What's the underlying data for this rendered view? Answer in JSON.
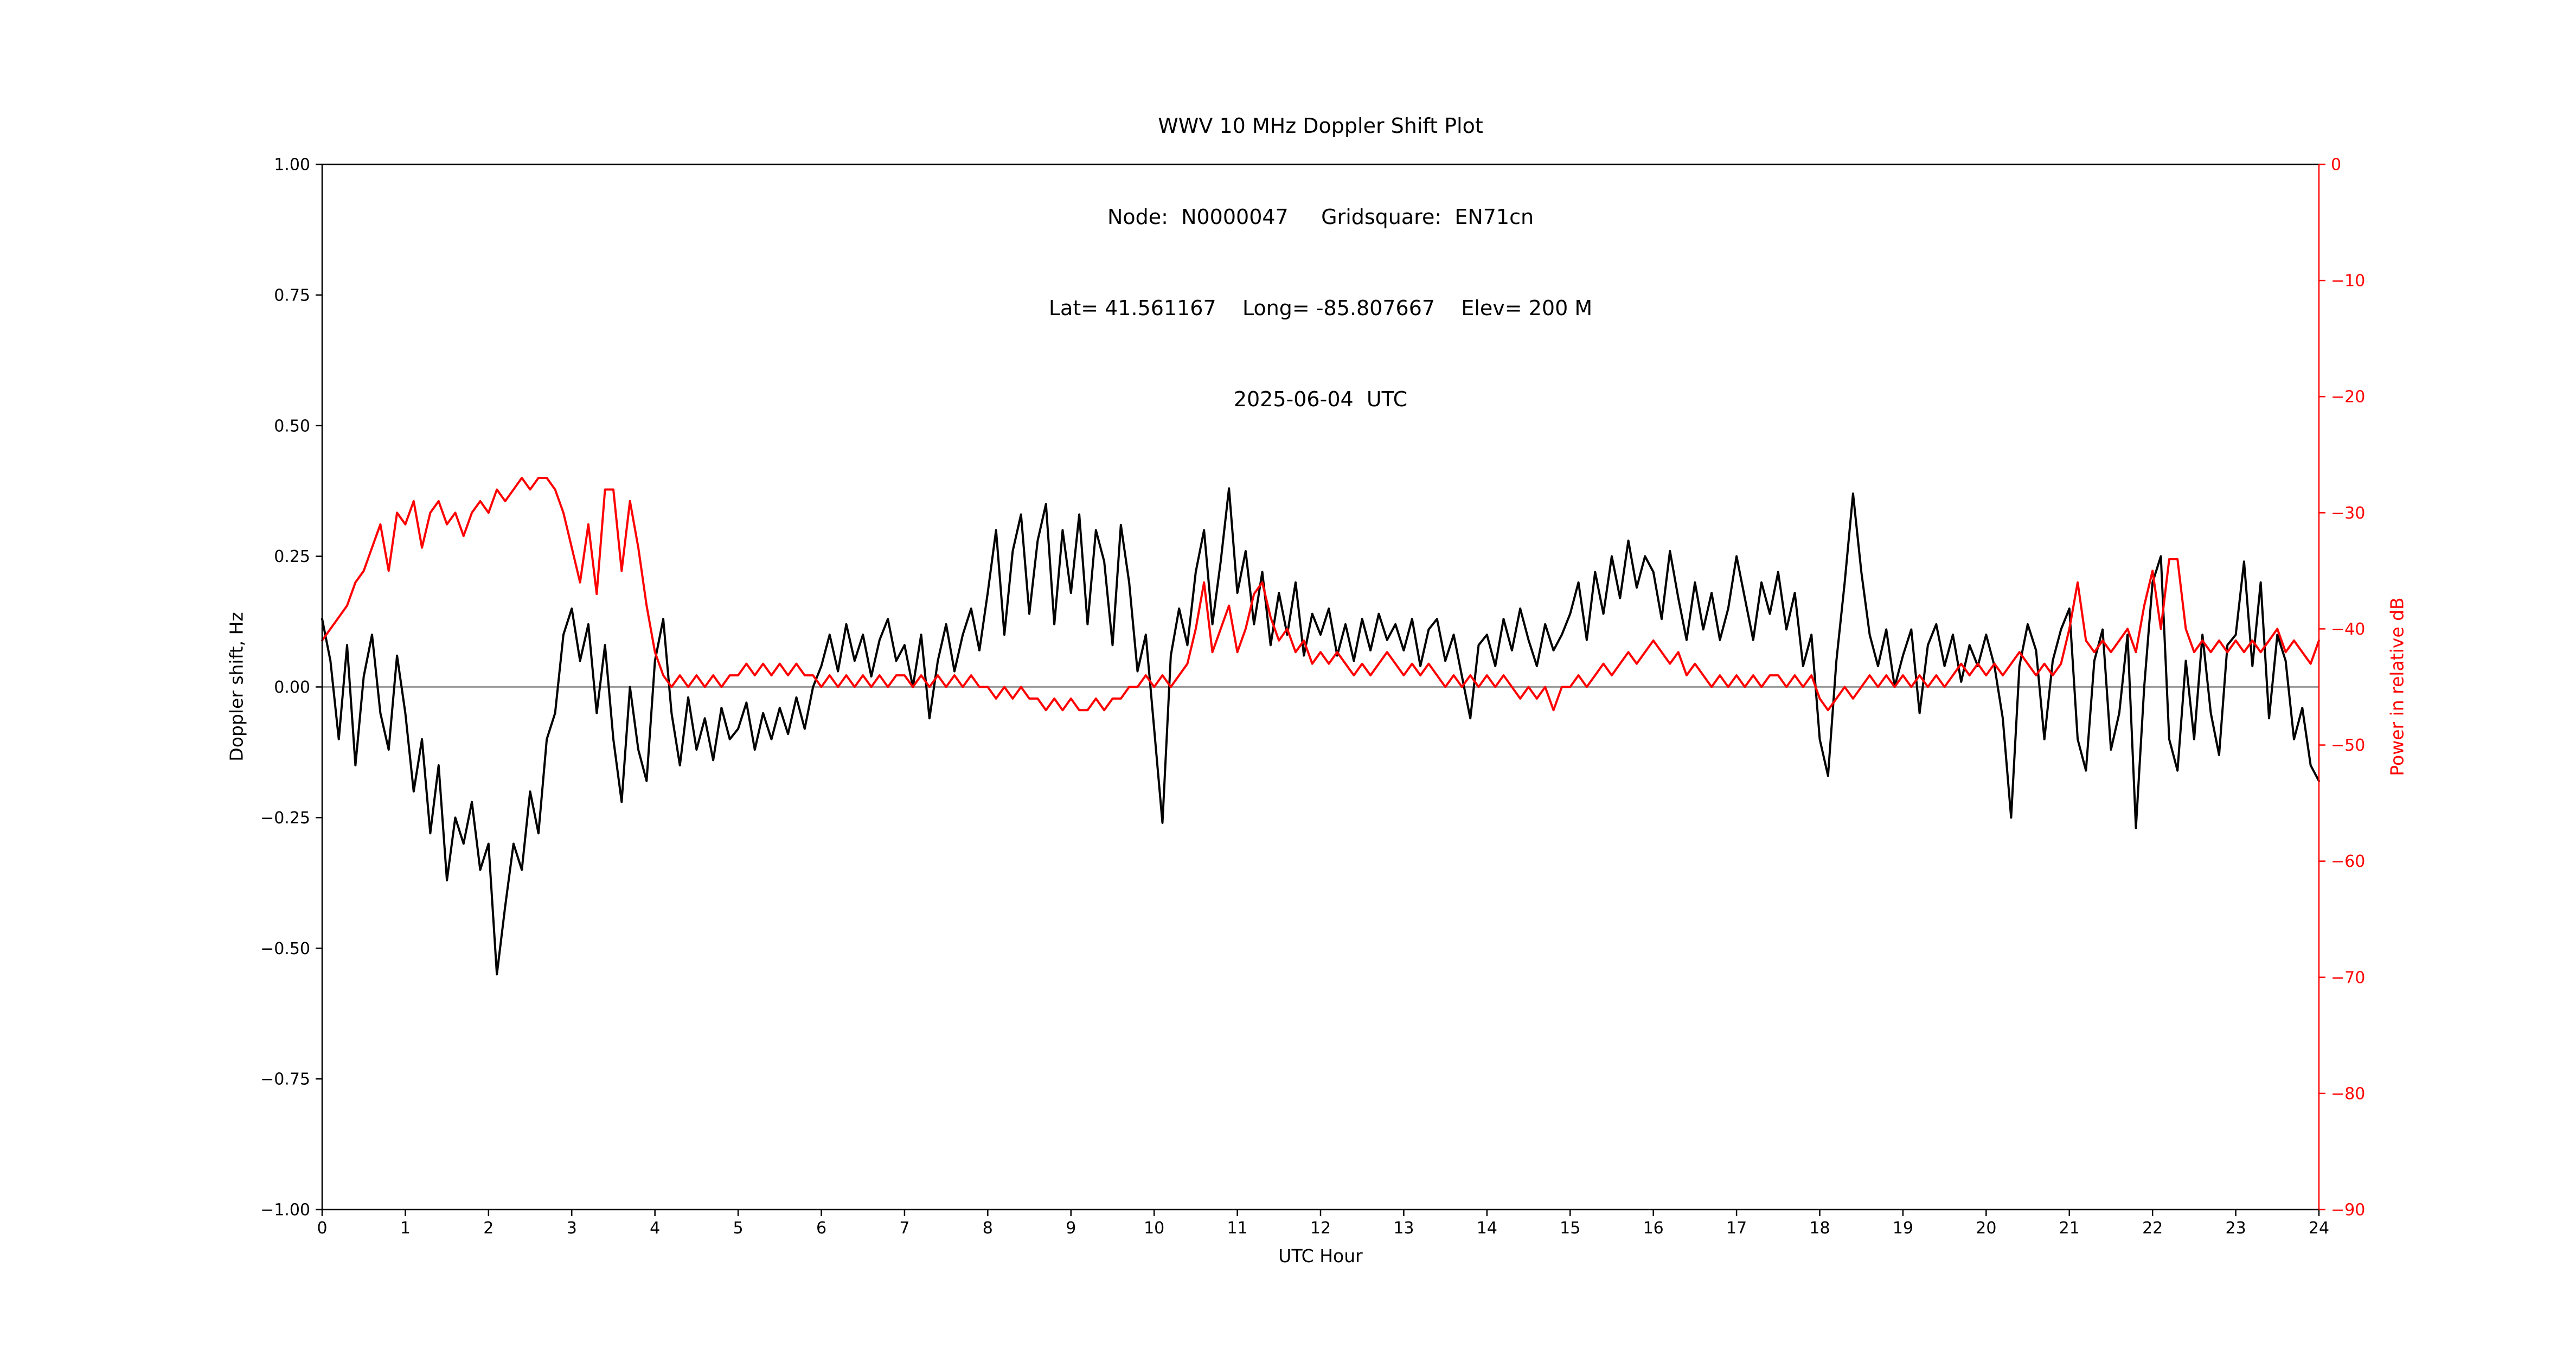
{
  "title": {
    "line1": "WWV 10 MHz Doppler Shift Plot",
    "line2": "Node:  N0000047     Gridsquare:  EN71cn",
    "line3": "Lat= 41.561167    Long= -85.807667    Elev= 200 M",
    "line4": "2025-06-04  UTC"
  },
  "axes": {
    "xlabel": "UTC Hour",
    "ylabel_left": "Doppler shift, Hz",
    "ylabel_right": "Power in relative dB"
  },
  "colors": {
    "doppler_line": "#000000",
    "power_line": "#ff0000",
    "right_axis": "#ff0000",
    "zero_line": "#808080",
    "spine": "#000000",
    "background": "#ffffff"
  },
  "chart_data": {
    "type": "line",
    "title": "WWV 10 MHz Doppler Shift Plot",
    "xlabel": "UTC Hour",
    "ylabel_left": "Doppler shift, Hz",
    "ylabel_right": "Power in relative dB",
    "x_range": [
      0,
      24
    ],
    "y_left_range": [
      -1.0,
      1.0
    ],
    "y_right_range": [
      -90,
      0
    ],
    "grid": false,
    "zero_line_value": 0.0,
    "x_ticks": {
      "values": [
        0,
        1,
        2,
        3,
        4,
        5,
        6,
        7,
        8,
        9,
        10,
        11,
        12,
        13,
        14,
        15,
        16,
        17,
        18,
        19,
        20,
        21,
        22,
        23,
        24
      ],
      "labels": [
        "0",
        "1",
        "2",
        "3",
        "4",
        "5",
        "6",
        "7",
        "8",
        "9",
        "10",
        "11",
        "12",
        "13",
        "14",
        "15",
        "16",
        "17",
        "18",
        "19",
        "20",
        "21",
        "22",
        "23",
        "24"
      ]
    },
    "y_left_ticks": {
      "values": [
        1.0,
        0.75,
        0.5,
        0.25,
        0.0,
        -0.25,
        -0.5,
        -0.75,
        -1.0
      ],
      "labels": [
        "1.00",
        "0.75",
        "0.50",
        "0.25",
        "0.00",
        "−0.25",
        "−0.50",
        "−0.75",
        "−1.00"
      ]
    },
    "y_right_ticks": {
      "values": [
        0,
        -10,
        -20,
        -30,
        -40,
        -50,
        -60,
        -70,
        -80,
        -90
      ],
      "labels": [
        "0",
        "−10",
        "−20",
        "−30",
        "−40",
        "−50",
        "−60",
        "−70",
        "−80",
        "−90"
      ]
    },
    "x_start": 0,
    "x_step": 0.1,
    "series": [
      {
        "name": "Doppler shift",
        "axis": "left",
        "color": "#000000",
        "values": [
          0.13,
          0.05,
          -0.1,
          0.08,
          -0.15,
          0.02,
          0.1,
          -0.05,
          -0.12,
          0.06,
          -0.05,
          -0.2,
          -0.1,
          -0.28,
          -0.15,
          -0.37,
          -0.25,
          -0.3,
          -0.22,
          -0.35,
          -0.3,
          -0.55,
          -0.42,
          -0.3,
          -0.35,
          -0.2,
          -0.28,
          -0.1,
          -0.05,
          0.1,
          0.15,
          0.05,
          0.12,
          -0.05,
          0.08,
          -0.1,
          -0.22,
          0.0,
          -0.12,
          -0.18,
          0.05,
          0.13,
          -0.05,
          -0.15,
          -0.02,
          -0.12,
          -0.06,
          -0.14,
          -0.04,
          -0.1,
          -0.08,
          -0.03,
          -0.12,
          -0.05,
          -0.1,
          -0.04,
          -0.09,
          -0.02,
          -0.08,
          0.0,
          0.04,
          0.1,
          0.03,
          0.12,
          0.05,
          0.1,
          0.02,
          0.09,
          0.13,
          0.05,
          0.08,
          0.0,
          0.1,
          -0.06,
          0.05,
          0.12,
          0.03,
          0.1,
          0.15,
          0.07,
          0.18,
          0.3,
          0.1,
          0.26,
          0.33,
          0.14,
          0.28,
          0.35,
          0.12,
          0.3,
          0.18,
          0.33,
          0.12,
          0.3,
          0.24,
          0.08,
          0.31,
          0.2,
          0.03,
          0.1,
          -0.08,
          -0.26,
          0.06,
          0.15,
          0.08,
          0.22,
          0.3,
          0.12,
          0.24,
          0.38,
          0.18,
          0.26,
          0.12,
          0.22,
          0.08,
          0.18,
          0.1,
          0.2,
          0.06,
          0.14,
          0.1,
          0.15,
          0.06,
          0.12,
          0.05,
          0.13,
          0.07,
          0.14,
          0.09,
          0.12,
          0.07,
          0.13,
          0.04,
          0.11,
          0.13,
          0.05,
          0.1,
          0.02,
          -0.06,
          0.08,
          0.1,
          0.04,
          0.13,
          0.07,
          0.15,
          0.09,
          0.04,
          0.12,
          0.07,
          0.1,
          0.14,
          0.2,
          0.09,
          0.22,
          0.14,
          0.25,
          0.17,
          0.28,
          0.19,
          0.25,
          0.22,
          0.13,
          0.26,
          0.17,
          0.09,
          0.2,
          0.11,
          0.18,
          0.09,
          0.15,
          0.25,
          0.17,
          0.09,
          0.2,
          0.14,
          0.22,
          0.11,
          0.18,
          0.04,
          0.1,
          -0.1,
          -0.17,
          0.05,
          0.2,
          0.37,
          0.22,
          0.1,
          0.04,
          0.11,
          0.0,
          0.06,
          0.11,
          -0.05,
          0.08,
          0.12,
          0.04,
          0.1,
          0.01,
          0.08,
          0.04,
          0.1,
          0.04,
          -0.06,
          -0.25,
          0.04,
          0.12,
          0.07,
          -0.1,
          0.05,
          0.11,
          0.15,
          -0.1,
          -0.16,
          0.05,
          0.11,
          -0.12,
          -0.05,
          0.1,
          -0.27,
          0.0,
          0.2,
          0.25,
          -0.1,
          -0.16,
          0.05,
          -0.1,
          0.1,
          -0.05,
          -0.13,
          0.08,
          0.1,
          0.24,
          0.04,
          0.2,
          -0.06,
          0.1,
          0.05,
          -0.1,
          -0.04,
          -0.15,
          -0.18
        ]
      },
      {
        "name": "Power in relative dB",
        "axis": "right",
        "color": "#ff0000",
        "values": [
          -41,
          -40,
          -39,
          -38,
          -36,
          -35,
          -33,
          -31,
          -35,
          -30,
          -31,
          -29,
          -33,
          -30,
          -29,
          -31,
          -30,
          -32,
          -30,
          -29,
          -30,
          -28,
          -29,
          -28,
          -27,
          -28,
          -27,
          -27,
          -28,
          -30,
          -33,
          -36,
          -31,
          -37,
          -28,
          -28,
          -35,
          -29,
          -33,
          -38,
          -42,
          -44,
          -45,
          -44,
          -45,
          -44,
          -45,
          -44,
          -45,
          -44,
          -44,
          -43,
          -44,
          -43,
          -44,
          -43,
          -44,
          -43,
          -44,
          -44,
          -45,
          -44,
          -45,
          -44,
          -45,
          -44,
          -45,
          -44,
          -45,
          -44,
          -44,
          -45,
          -44,
          -45,
          -44,
          -45,
          -44,
          -45,
          -44,
          -45,
          -45,
          -46,
          -45,
          -46,
          -45,
          -46,
          -46,
          -47,
          -46,
          -47,
          -46,
          -47,
          -47,
          -46,
          -47,
          -46,
          -46,
          -45,
          -45,
          -44,
          -45,
          -44,
          -45,
          -44,
          -43,
          -40,
          -36,
          -42,
          -40,
          -38,
          -42,
          -40,
          -37,
          -36,
          -39,
          -41,
          -40,
          -42,
          -41,
          -43,
          -42,
          -43,
          -42,
          -43,
          -44,
          -43,
          -44,
          -43,
          -42,
          -43,
          -44,
          -43,
          -44,
          -43,
          -44,
          -45,
          -44,
          -45,
          -44,
          -45,
          -44,
          -45,
          -44,
          -45,
          -46,
          -45,
          -46,
          -45,
          -47,
          -45,
          -45,
          -44,
          -45,
          -44,
          -43,
          -44,
          -43,
          -42,
          -43,
          -42,
          -41,
          -42,
          -43,
          -42,
          -44,
          -43,
          -44,
          -45,
          -44,
          -45,
          -44,
          -45,
          -44,
          -45,
          -44,
          -44,
          -45,
          -44,
          -45,
          -44,
          -46,
          -47,
          -46,
          -45,
          -46,
          -45,
          -44,
          -45,
          -44,
          -45,
          -44,
          -45,
          -44,
          -45,
          -44,
          -45,
          -44,
          -43,
          -44,
          -43,
          -44,
          -43,
          -44,
          -43,
          -42,
          -43,
          -44,
          -43,
          -44,
          -43,
          -40,
          -36,
          -41,
          -42,
          -41,
          -42,
          -41,
          -40,
          -42,
          -38,
          -35,
          -40,
          -34,
          -34,
          -40,
          -42,
          -41,
          -42,
          -41,
          -42,
          -41,
          -42,
          -41,
          -42,
          -41,
          -40,
          -42,
          -41,
          -42,
          -43,
          -41
        ]
      }
    ]
  }
}
